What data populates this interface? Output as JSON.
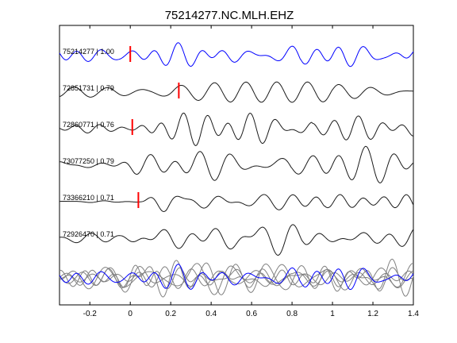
{
  "chart_data": {
    "type": "line",
    "title": "75214277.NC.MLH.EHZ",
    "xlabel": "",
    "ylabel": "",
    "xlim": [
      -0.35,
      1.4
    ],
    "xticks": [
      -0.2,
      0,
      0.2,
      0.4,
      0.6,
      0.8,
      1,
      1.2,
      1.4
    ],
    "xtick_labels": [
      "-0.2",
      "0",
      "0.2",
      "0.4",
      "0.6",
      "0.8",
      "1",
      "1.2",
      "1.4"
    ],
    "yticks_shown": false,
    "grid": false,
    "colors": {
      "reference_trace": "#0000ff",
      "trace": "#1a1a1a",
      "pick_marker": "#ff0000",
      "stack_trace": "#808080"
    },
    "traces": [
      {
        "label": "75214277 | 1.00",
        "event_id": "75214277",
        "correlation": 1.0,
        "pick_time": 0.0,
        "color": "#0000ff",
        "onset": -0.06,
        "f": 7.5,
        "pre_amp": 0.55,
        "amp": 1.0,
        "seed": 1
      },
      {
        "label": "72851731 | 0.79",
        "event_id": "72851731",
        "correlation": 0.79,
        "pick_time": 0.24,
        "color": "#1a1a1a",
        "onset": 0.1,
        "f": 5.5,
        "pre_amp": 0.45,
        "amp": 1.1,
        "seed": 2
      },
      {
        "label": "72860771 | 0.76",
        "event_id": "72860771",
        "correlation": 0.76,
        "pick_time": 0.01,
        "color": "#1a1a1a",
        "onset": 0.0,
        "f": 6.5,
        "pre_amp": 0.3,
        "amp": 1.1,
        "seed": 3
      },
      {
        "label": "73077250 | 0.79",
        "event_id": "73077250",
        "correlation": 0.79,
        "pick_time": null,
        "color": "#1a1a1a",
        "onset": -0.1,
        "f": 6.5,
        "pre_amp": 0.5,
        "amp": 1.2,
        "seed": 4
      },
      {
        "label": "73366210 | 0.71",
        "event_id": "73366210",
        "correlation": 0.71,
        "pick_time": 0.04,
        "color": "#1a1a1a",
        "onset": 0.06,
        "f": 6.5,
        "pre_amp": 0.08,
        "amp": 1.2,
        "seed": 5
      },
      {
        "label": "72926470 | 0.71",
        "event_id": "72926470",
        "correlation": 0.71,
        "pick_time": null,
        "color": "#1a1a1a",
        "onset": -0.05,
        "f": 5.5,
        "pre_amp": 0.4,
        "amp": 1.1,
        "seed": 6
      }
    ],
    "stack": {
      "gray_traces": 5,
      "blue_trace": true
    }
  }
}
